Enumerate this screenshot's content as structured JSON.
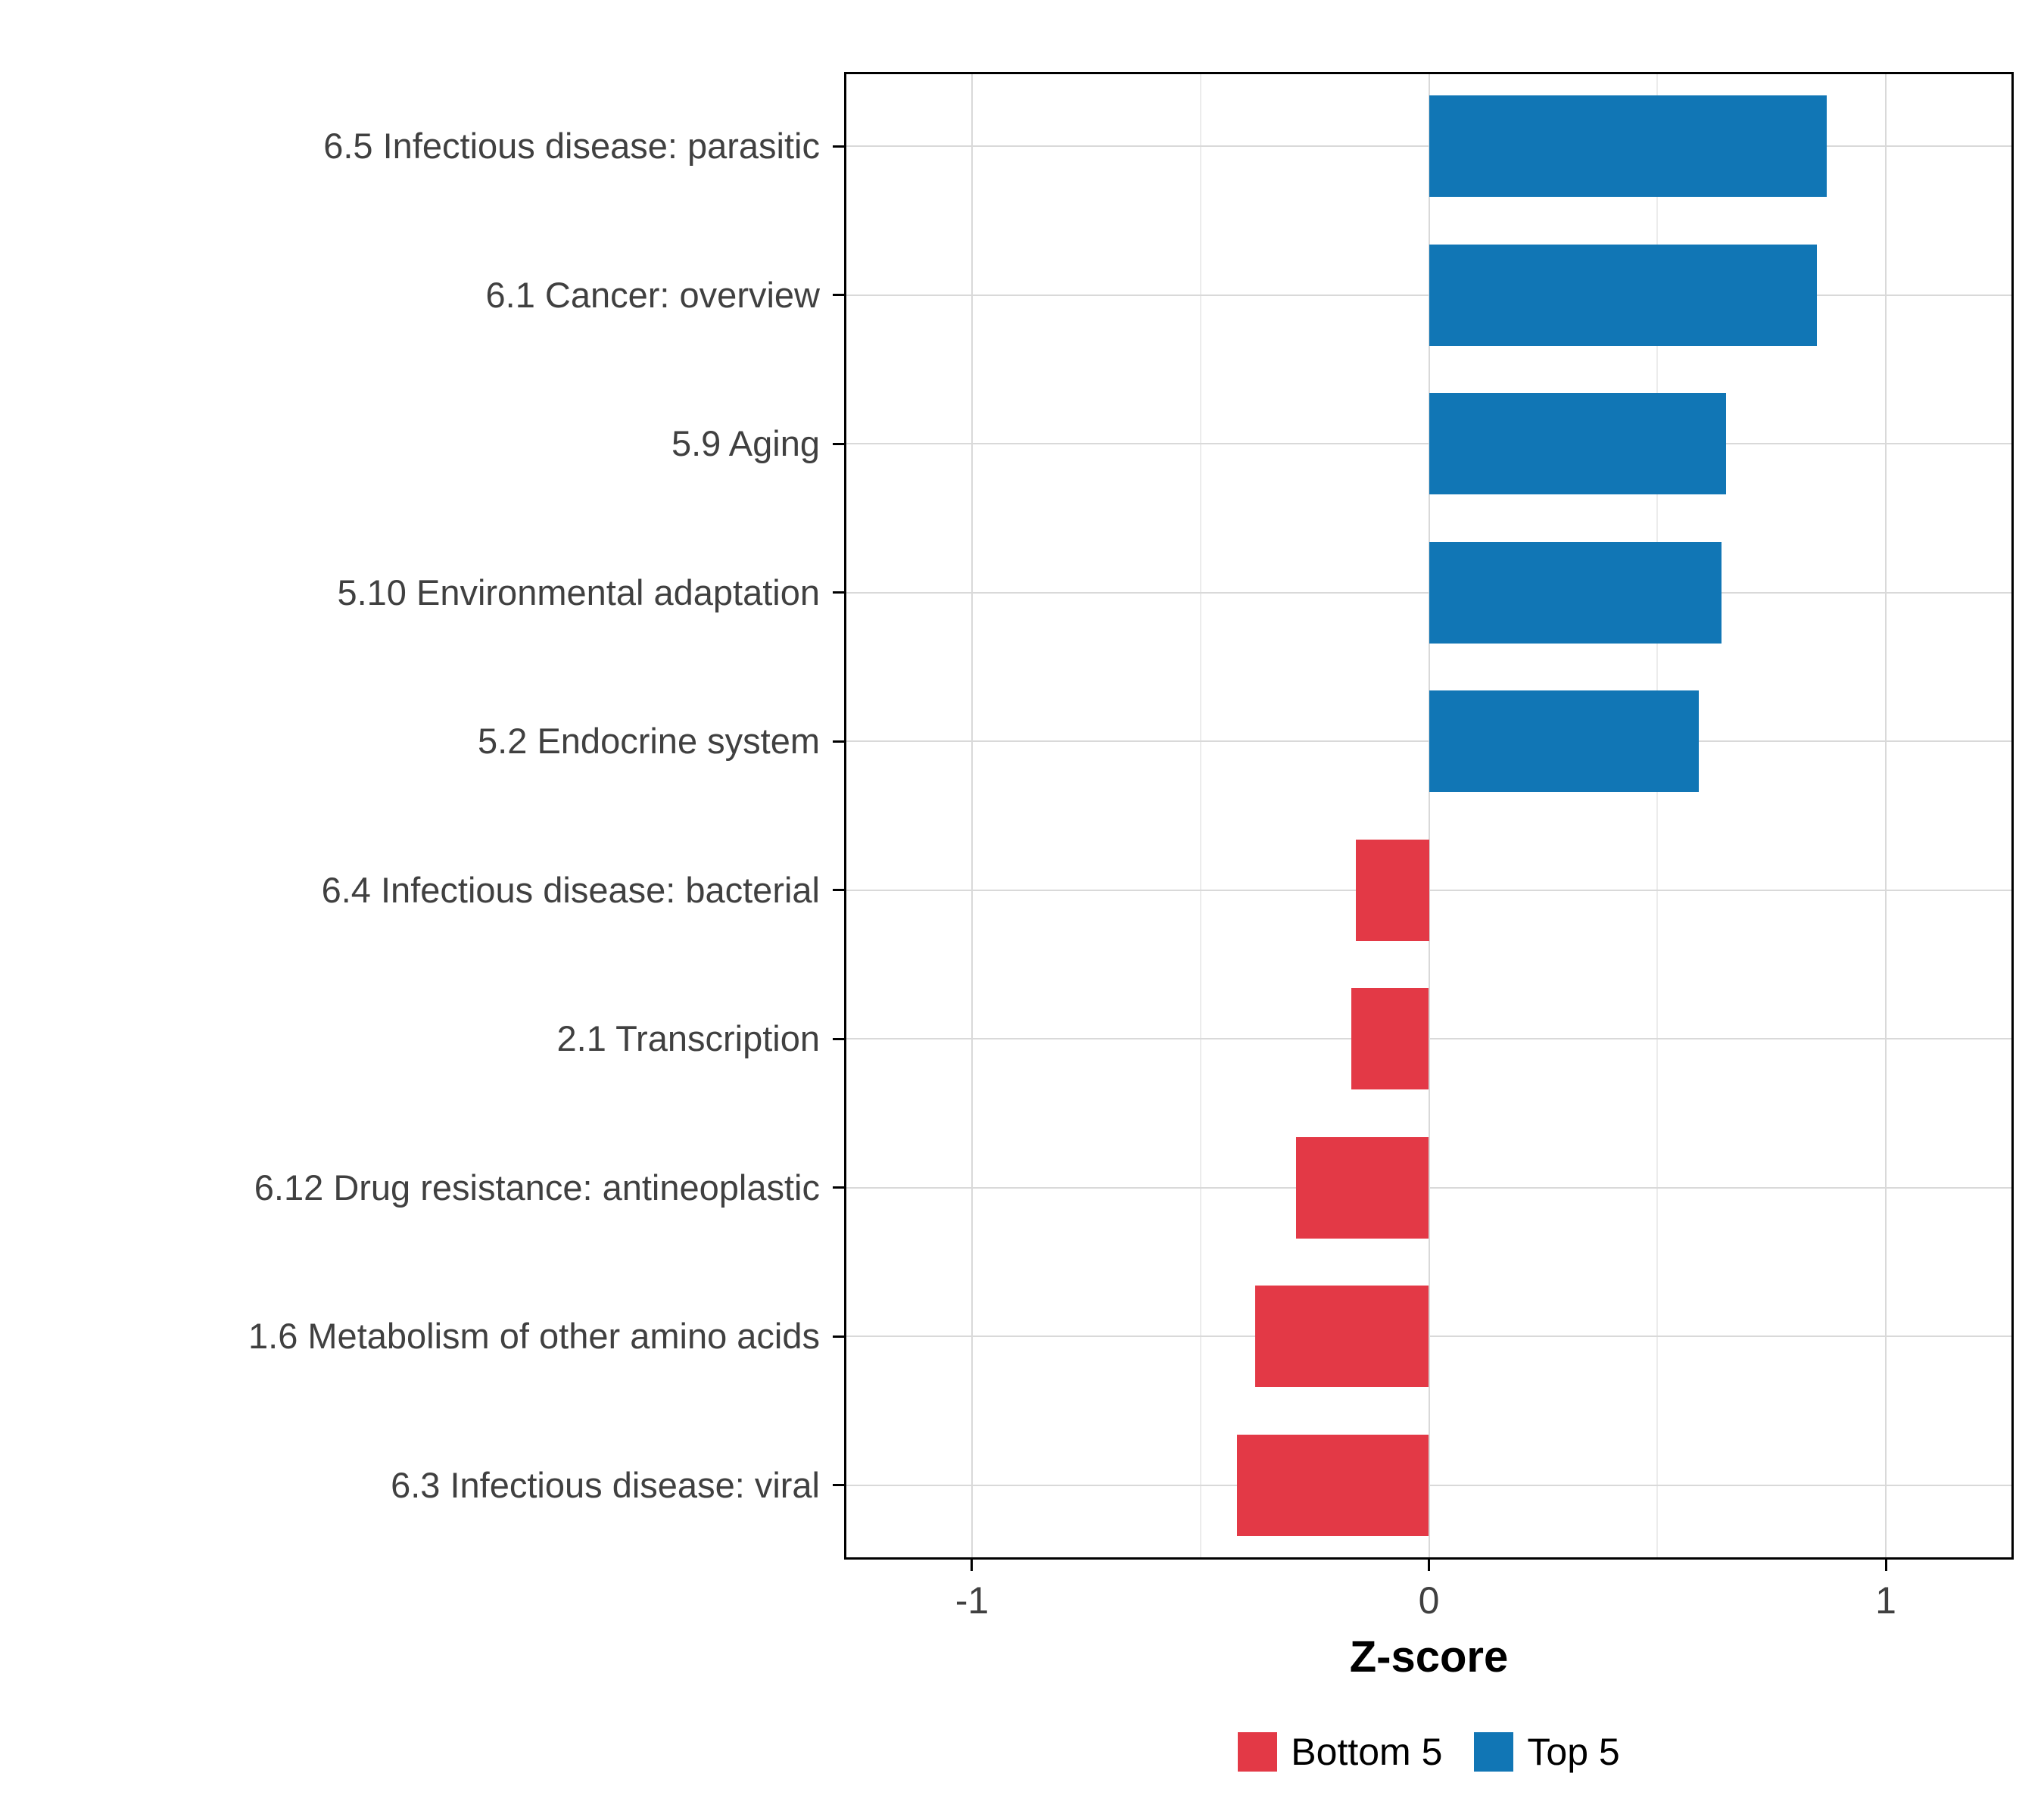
{
  "chart_data": {
    "type": "bar",
    "orientation": "horizontal",
    "title": "",
    "xlabel": "Z-score",
    "ylabel": "",
    "xlim": [
      -1.28,
      1.28
    ],
    "x_ticks": [
      -1,
      0,
      1
    ],
    "x_tick_labels": [
      "-1",
      "0",
      "1"
    ],
    "x_minor_ticks": [
      -0.5,
      0.5
    ],
    "grid": "on",
    "categories": [
      "6.5 Infectious disease: parasitic",
      "6.1 Cancer: overview",
      "5.9 Aging",
      "5.10 Environmental adaptation",
      "5.2 Endocrine system",
      "6.4 Infectious disease: bacterial",
      "2.1 Transcription",
      "6.12 Drug resistance: antineoplastic",
      "1.6 Metabolism of other amino acids",
      "6.3 Infectious disease: viral"
    ],
    "values": [
      0.87,
      0.85,
      0.65,
      0.64,
      0.59,
      -0.16,
      -0.17,
      -0.29,
      -0.38,
      -0.42
    ],
    "groups": [
      "Top 5",
      "Top 5",
      "Top 5",
      "Top 5",
      "Top 5",
      "Bottom 5",
      "Bottom 5",
      "Bottom 5",
      "Bottom 5",
      "Bottom 5"
    ],
    "colors": {
      "Top 5": "#1176B5",
      "Bottom 5": "#E33946"
    },
    "legend": {
      "position": "bottom",
      "entries": [
        {
          "label": "Bottom 5",
          "color": "#E33946"
        },
        {
          "label": "Top 5",
          "color": "#1176B5"
        }
      ]
    }
  },
  "style_colors": {
    "grid_major": "#d9d9d9",
    "grid_minor": "#ececec",
    "axis_text": "#404040",
    "panel_border": "#000000"
  }
}
